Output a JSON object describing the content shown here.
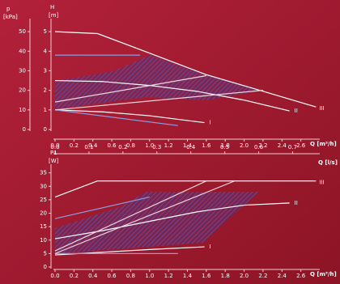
{
  "chart_data": [
    {
      "type": "line",
      "ylabel": [
        "H",
        "[m]"
      ],
      "y2label": [
        "p",
        "[kPa]"
      ],
      "xlabel": "Q [m³/h]",
      "x2label": "Q [l/s]",
      "xlim": [
        0,
        2.8
      ],
      "xticks": [
        {
          "value": 0,
          "label": "0.0"
        },
        0.2,
        0.4,
        0.6,
        0.8,
        {
          "value": 1,
          "label": "1.0"
        },
        1.2,
        1.4,
        1.6,
        1.8,
        {
          "value": 2,
          "label": "2.0"
        },
        2.2,
        2.4,
        2.6
      ],
      "x2lim": [
        0,
        0.78
      ],
      "x2ticks": [
        {
          "value": 0,
          "label": "0.0"
        },
        0.1,
        0.2,
        0.3,
        0.4,
        0.5,
        0.6,
        0.7
      ],
      "ylim": [
        0,
        5.5
      ],
      "yticks": [
        0,
        1,
        2,
        3,
        4,
        5
      ],
      "y2lim": [
        0,
        55
      ],
      "y2ticks": [
        0,
        10,
        20,
        30,
        40,
        50
      ],
      "series": [
        {
          "name": "I",
          "color": "#ffffff",
          "x": [
            0,
            0.5,
            1.0,
            1.58
          ],
          "values": [
            1.0,
            0.9,
            0.7,
            0.35
          ]
        },
        {
          "name": "II",
          "color": "#ffffff",
          "x": [
            0,
            0.5,
            1.0,
            1.5,
            2.0,
            2.48
          ],
          "values": [
            2.5,
            2.45,
            2.25,
            1.95,
            1.5,
            0.95
          ]
        },
        {
          "name": "III",
          "color": "#ffffff",
          "x": [
            0,
            0.45,
            1.0,
            1.6,
            2.2,
            2.76
          ],
          "values": [
            5.0,
            4.9,
            3.9,
            2.8,
            1.95,
            1.15
          ]
        },
        {
          "color": "#8d9be0",
          "x": [
            0,
            1.3
          ],
          "values": [
            1.0,
            0.2
          ]
        },
        {
          "color": "#8d9be0",
          "x": [
            0,
            0.9
          ],
          "values": [
            3.8,
            3.8
          ]
        },
        {
          "color": "#f3d6db",
          "x": [
            0,
            2.2
          ],
          "values": [
            1.0,
            2.0
          ]
        },
        {
          "color": "#f3d6db",
          "x": [
            0,
            1.6
          ],
          "values": [
            1.4,
            2.75
          ]
        }
      ]
    },
    {
      "type": "line",
      "ylabel": [
        "P1",
        "[W]"
      ],
      "xlabel": "Q [m³/h]",
      "xlim": [
        0,
        2.8
      ],
      "xticks": [
        {
          "value": 0,
          "label": "0.0"
        },
        0.2,
        0.4,
        0.6,
        0.8,
        {
          "value": 1,
          "label": "1.0"
        },
        1.2,
        1.4,
        1.6,
        1.8,
        {
          "value": 2,
          "label": "2.0"
        },
        2.2,
        2.4,
        2.6
      ],
      "ylim": [
        0,
        37
      ],
      "yticks": [
        0,
        5,
        10,
        15,
        20,
        25,
        30,
        35
      ],
      "series": [
        {
          "name": "I",
          "color": "#ffffff",
          "x": [
            0,
            0.5,
            1.0,
            1.58
          ],
          "values": [
            4.5,
            5.5,
            6.5,
            7.5
          ]
        },
        {
          "name": "II",
          "color": "#ffffff",
          "x": [
            0,
            0.5,
            1.0,
            1.5,
            2.0,
            2.48
          ],
          "values": [
            10.5,
            13.5,
            17,
            20.5,
            23,
            23.8
          ]
        },
        {
          "name": "III",
          "color": "#ffffff",
          "x": [
            0,
            0.45,
            2.76
          ],
          "values": [
            26,
            32,
            32
          ]
        },
        {
          "color": "#8d9be0",
          "x": [
            0,
            1.3
          ],
          "values": [
            5,
            5
          ]
        },
        {
          "color": "#8d9be0",
          "x": [
            0,
            1.0
          ],
          "values": [
            18,
            26
          ]
        },
        {
          "color": "#f3d6db",
          "x": [
            0,
            1.9
          ],
          "values": [
            5,
            32
          ]
        },
        {
          "color": "#f3d6db",
          "x": [
            0,
            1.6
          ],
          "values": [
            6,
            32
          ]
        }
      ]
    }
  ]
}
